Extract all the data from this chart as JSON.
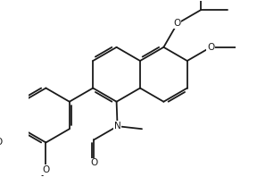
{
  "bg": "#ffffff",
  "lc": "#1a1a1a",
  "lw": 1.3,
  "fs": 7.5,
  "dbl_off": 0.013,
  "b": 0.155,
  "xlim": [
    0.0,
    1.18
  ],
  "ylim": [
    0.02,
    1.02
  ]
}
